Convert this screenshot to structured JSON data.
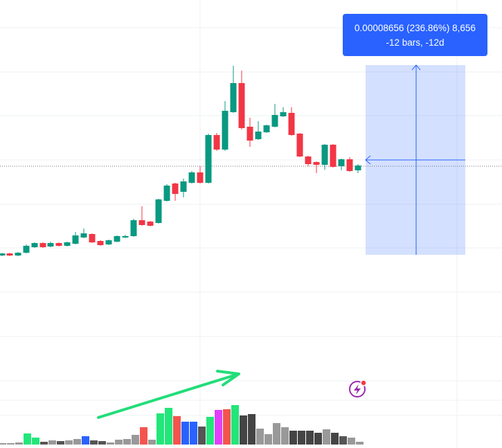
{
  "tooltip": {
    "line1": "0.00008656 (236.86%) 8,656",
    "line2": "-12 bars, -12d"
  }
}
